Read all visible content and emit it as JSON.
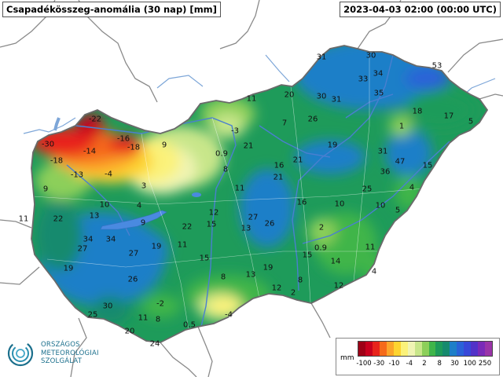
{
  "header": {
    "title": "Csapadékösszeg-anomália (30 nap) [mm]",
    "timestamp": "2023-04-03 02:00 (00:00 UTC)"
  },
  "logo": {
    "lines": [
      "ORSZÁGOS",
      "METEOROLÓGIAI",
      "SZOLGÁLAT"
    ],
    "color": "#1b6f8c"
  },
  "legend": {
    "unit": "mm",
    "ticks": [
      "-100",
      "-30",
      "-10",
      "-4",
      "2",
      "8",
      "30",
      "100",
      "250"
    ],
    "colors": [
      "#9e0016",
      "#c8001e",
      "#e8241c",
      "#f56a1a",
      "#fba52a",
      "#fdd430",
      "#fbf27a",
      "#f0f4b4",
      "#c8e68a",
      "#8ccf5a",
      "#3fb54a",
      "#1e9b5a",
      "#168a6e",
      "#1e7fc8",
      "#2a62d8",
      "#3848d8",
      "#5232c8",
      "#7a2ab8",
      "#9a34a8"
    ]
  },
  "map_values": [
    {
      "text": "31"
    },
    {
      "text": "30"
    },
    {
      "text": "53"
    },
    {
      "text": "33"
    },
    {
      "text": "34"
    },
    {
      "text": "35"
    },
    {
      "text": "20"
    },
    {
      "text": "30"
    },
    {
      "text": "31"
    },
    {
      "text": "11"
    },
    {
      "text": "18"
    },
    {
      "text": "17"
    },
    {
      "text": "5"
    },
    {
      "text": "1"
    },
    {
      "text": "-22"
    },
    {
      "text": "-3"
    },
    {
      "text": "7"
    },
    {
      "text": "26"
    },
    {
      "text": "-30"
    },
    {
      "text": "-16"
    },
    {
      "text": "-14"
    },
    {
      "text": "-18"
    },
    {
      "text": "9"
    },
    {
      "text": "21"
    },
    {
      "text": "19"
    },
    {
      "text": "31"
    },
    {
      "text": "-18"
    },
    {
      "text": "0.9"
    },
    {
      "text": "47"
    },
    {
      "text": "15"
    },
    {
      "text": "-13"
    },
    {
      "text": "-4"
    },
    {
      "text": "8"
    },
    {
      "text": "16"
    },
    {
      "text": "21"
    },
    {
      "text": "36"
    },
    {
      "text": "21"
    },
    {
      "text": "9"
    },
    {
      "text": "3"
    },
    {
      "text": "11"
    },
    {
      "text": "25"
    },
    {
      "text": "4"
    },
    {
      "text": "10"
    },
    {
      "text": "4"
    },
    {
      "text": "12"
    },
    {
      "text": "16"
    },
    {
      "text": "10"
    },
    {
      "text": "10"
    },
    {
      "text": "5"
    },
    {
      "text": "11"
    },
    {
      "text": "22"
    },
    {
      "text": "13"
    },
    {
      "text": "9"
    },
    {
      "text": "27"
    },
    {
      "text": "22"
    },
    {
      "text": "15"
    },
    {
      "text": "13"
    },
    {
      "text": "26"
    },
    {
      "text": "2"
    },
    {
      "text": "34"
    },
    {
      "text": "34"
    },
    {
      "text": "27"
    },
    {
      "text": "19"
    },
    {
      "text": "11"
    },
    {
      "text": "0.9"
    },
    {
      "text": "11"
    },
    {
      "text": "27"
    },
    {
      "text": "15"
    },
    {
      "text": "15"
    },
    {
      "text": "14"
    },
    {
      "text": "19"
    },
    {
      "text": "19"
    },
    {
      "text": "4"
    },
    {
      "text": "26"
    },
    {
      "text": "8"
    },
    {
      "text": "13"
    },
    {
      "text": "8"
    },
    {
      "text": "12"
    },
    {
      "text": "12"
    },
    {
      "text": "2"
    },
    {
      "text": "30"
    },
    {
      "text": "-2"
    },
    {
      "text": "25"
    },
    {
      "text": "11"
    },
    {
      "text": "8"
    },
    {
      "text": "-4"
    },
    {
      "text": "0.5"
    },
    {
      "text": "20"
    },
    {
      "text": "24"
    }
  ]
}
